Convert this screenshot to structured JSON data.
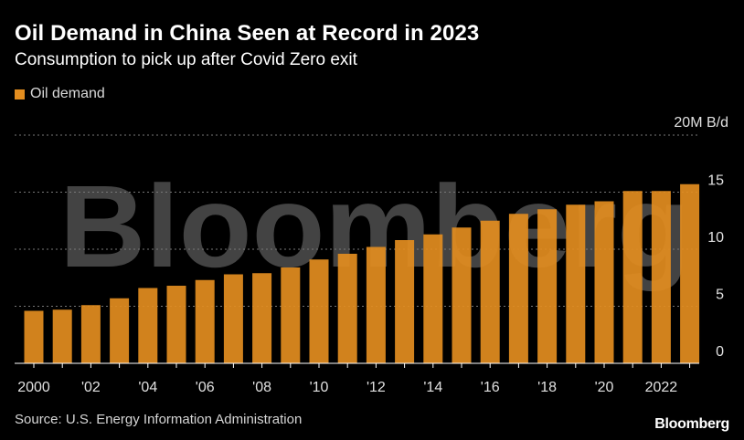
{
  "header": {
    "title": "Oil Demand in China Seen at Record in 2023",
    "subtitle": "Consumption to pick up after Covid Zero exit"
  },
  "footer": {
    "source": "Source: U.S. Energy Information Administration",
    "brand": "Bloomberg"
  },
  "watermark": "Bloomberg",
  "colors": {
    "bar": "#e38d1f",
    "background": "#000000",
    "grid": "#777777",
    "text": "#ffffff"
  },
  "chart_data": {
    "type": "bar",
    "title": "Oil Demand in China Seen at Record in 2023",
    "subtitle": "Consumption to pick up after Covid Zero exit",
    "ylabel": "",
    "y_unit_label": "20M B/d",
    "ylim": [
      0,
      20
    ],
    "y_ticks": [
      0,
      5,
      10,
      15,
      20
    ],
    "grid": true,
    "grid_style": "dotted",
    "y_axis_side": "right",
    "legend_position": "top-left",
    "series": [
      {
        "name": "Oil demand",
        "x": [
          2000,
          2001,
          2002,
          2003,
          2004,
          2005,
          2006,
          2007,
          2008,
          2009,
          2010,
          2011,
          2012,
          2013,
          2014,
          2015,
          2016,
          2017,
          2018,
          2019,
          2020,
          2021,
          2022,
          2023
        ],
        "values": [
          4.6,
          4.7,
          5.1,
          5.7,
          6.6,
          6.8,
          7.3,
          7.8,
          7.9,
          8.4,
          9.1,
          9.6,
          10.2,
          10.8,
          11.3,
          11.9,
          12.5,
          13.1,
          13.5,
          13.9,
          14.2,
          15.1,
          15.1,
          15.7
        ]
      }
    ],
    "x_tick_labels": [
      {
        "x": 2000,
        "label": "2000"
      },
      {
        "x": 2002,
        "label": "'02"
      },
      {
        "x": 2004,
        "label": "'04"
      },
      {
        "x": 2006,
        "label": "'06"
      },
      {
        "x": 2008,
        "label": "'08"
      },
      {
        "x": 2010,
        "label": "'10"
      },
      {
        "x": 2012,
        "label": "'12"
      },
      {
        "x": 2014,
        "label": "'14"
      },
      {
        "x": 2016,
        "label": "'16"
      },
      {
        "x": 2018,
        "label": "'18"
      },
      {
        "x": 2020,
        "label": "'20"
      },
      {
        "x": 2022,
        "label": "2022"
      }
    ]
  }
}
